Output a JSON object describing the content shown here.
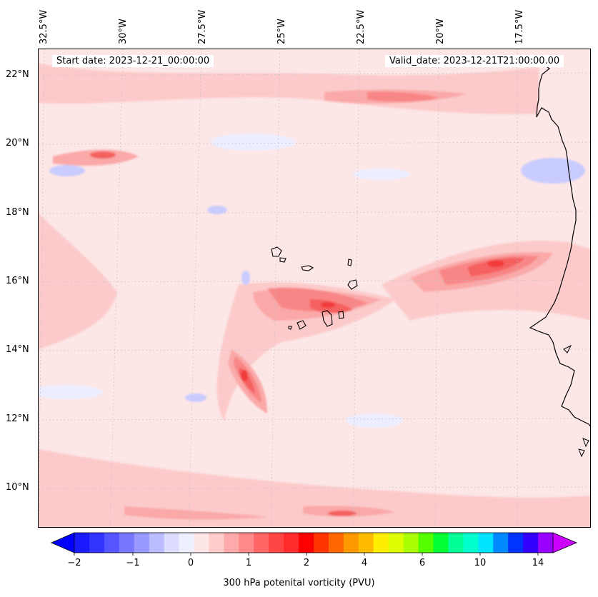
{
  "header": {
    "start_date": "Start date: 2023-12-21_00:00:00",
    "valid_date": "Valid_date: 2023-12-21T21:00:00.00"
  },
  "axes": {
    "lon_labels": [
      "32.5°W",
      "30°W",
      "27.5°W",
      "25°W",
      "22.5°W",
      "20°W",
      "17.5°W"
    ],
    "lat_labels": [
      "22°N",
      "20°N",
      "18°N",
      "16°N",
      "14°N",
      "12°N",
      "10°N"
    ]
  },
  "colorbar": {
    "title": "300 hPa potenital vorticity (PVU)",
    "tick_labels": [
      "−2",
      "−1",
      "0",
      "1",
      "2",
      "4",
      "6",
      "10",
      "14"
    ],
    "colors": [
      "#1a1aff",
      "#3333ff",
      "#5555ff",
      "#7777ff",
      "#9999ff",
      "#bbbbff",
      "#dcdcff",
      "#eef0ff",
      "#ffe6e6",
      "#ffcccc",
      "#ffaaaa",
      "#ff8888",
      "#ff6666",
      "#ff4444",
      "#ff2a2a",
      "#ff0000",
      "#ff3300",
      "#ff6600",
      "#ff9900",
      "#ffbb00",
      "#ffee00",
      "#ddff00",
      "#aaff00",
      "#55ff00",
      "#00ff33",
      "#00ff99",
      "#00ffcc",
      "#00e5ff",
      "#0088ff",
      "#0033ff",
      "#3300ff",
      "#9900ff"
    ],
    "under_color": "#0000ff",
    "over_color": "#cc00ff"
  },
  "map": {
    "background_color": "#fde6e6",
    "field_colors": {
      "very_light_pink": "#fde6e6",
      "light_pink": "#fccaca",
      "pink": "#faa8a8",
      "salmon": "#f88686",
      "red_light": "#f56060",
      "red": "#f23a3a",
      "very_light_blue": "#eceeff",
      "light_blue": "#c9ccff",
      "blue": "#a3a7ff"
    }
  }
}
